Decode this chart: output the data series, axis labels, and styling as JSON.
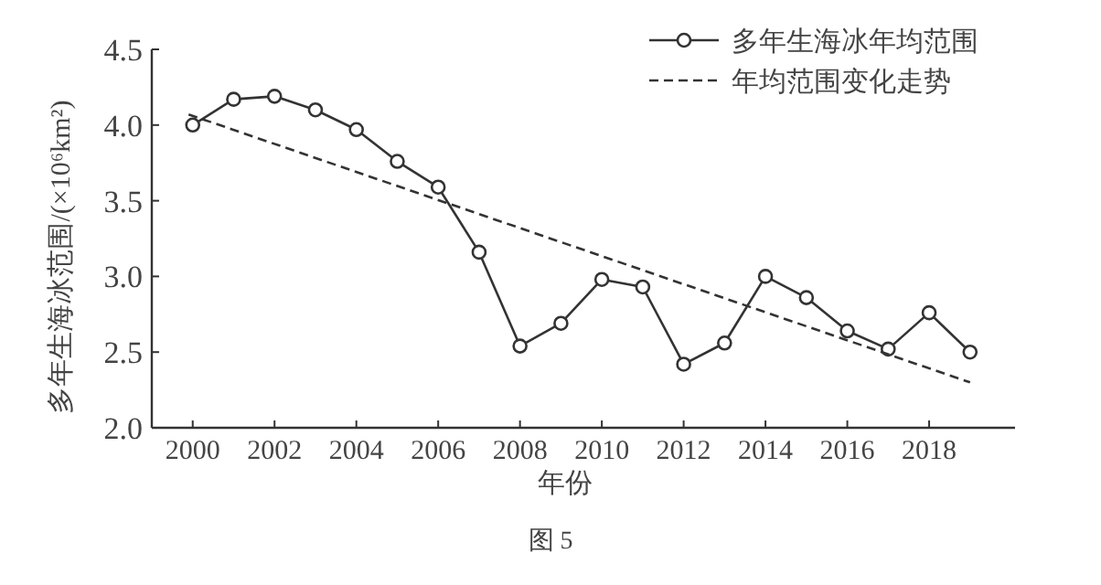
{
  "chart_data": {
    "type": "line",
    "xlabel": "年份",
    "ylabel": "多年生海冰范围/(×10⁶km²)",
    "annotations": [
      "图 5"
    ],
    "x": [
      2000,
      2001,
      2002,
      2003,
      2004,
      2005,
      2006,
      2007,
      2008,
      2009,
      2010,
      2011,
      2012,
      2013,
      2014,
      2015,
      2016,
      2017,
      2018,
      2019
    ],
    "series": [
      {
        "name": "多年生海冰年均范围",
        "color": "#333333",
        "marker": "circle",
        "line_style": "solid",
        "values": [
          4.0,
          4.17,
          4.19,
          4.1,
          3.97,
          3.76,
          3.59,
          3.16,
          2.54,
          2.69,
          2.98,
          2.93,
          2.42,
          2.56,
          3.0,
          2.86,
          2.64,
          2.52,
          2.76,
          2.5
        ]
      },
      {
        "name": "年均范围变化走势",
        "color": "#333333",
        "marker": "none",
        "line_style": "dashed",
        "x": [
          1999.9,
          2019
        ],
        "values": [
          4.07,
          2.3
        ]
      }
    ],
    "xlim": [
      1999,
      2020.1
    ],
    "xticks": [
      2000,
      2002,
      2004,
      2006,
      2008,
      2010,
      2012,
      2014,
      2016,
      2018
    ],
    "ylim": [
      2,
      4.5
    ],
    "yticks": [
      {
        "value": 2,
        "label": "2.0"
      },
      {
        "value": 2.5,
        "label": "2.5"
      },
      {
        "value": 3,
        "label": "3.0"
      },
      {
        "value": 3.5,
        "label": "3.5"
      },
      {
        "value": 4,
        "label": "4.0"
      },
      {
        "value": 4.5,
        "label": "4.5"
      }
    ],
    "grid": false,
    "legend": "top right"
  }
}
